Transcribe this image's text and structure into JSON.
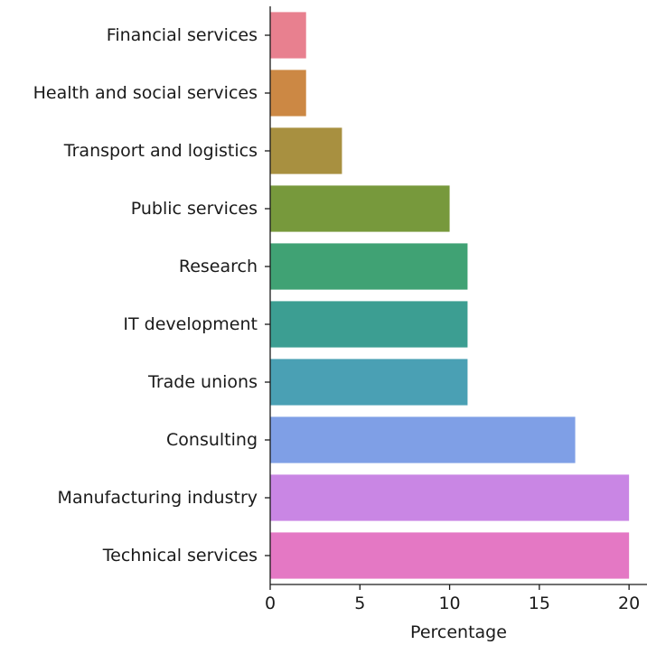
{
  "chart_data": {
    "type": "bar",
    "orientation": "horizontal",
    "title": "",
    "xlabel": "Percentage",
    "ylabel": "",
    "xlim": [
      0,
      21
    ],
    "xticks": [
      0,
      5,
      10,
      15,
      20
    ],
    "grid": false,
    "legend": "none",
    "categories": [
      "Financial services",
      "Health and social services",
      "Transport and logistics",
      "Public services",
      "Research",
      "IT development",
      "Trade unions",
      "Consulting",
      "Manufacturing industry",
      "Technical services"
    ],
    "values": [
      2,
      2,
      4,
      10,
      11,
      11,
      11,
      17,
      20,
      20
    ],
    "colors": [
      "#e8808f",
      "#cc8844",
      "#a89040",
      "#77993c",
      "#40a274",
      "#3c9e92",
      "#4aa0b4",
      "#7f9fe6",
      "#c986e4",
      "#e478c4"
    ]
  }
}
